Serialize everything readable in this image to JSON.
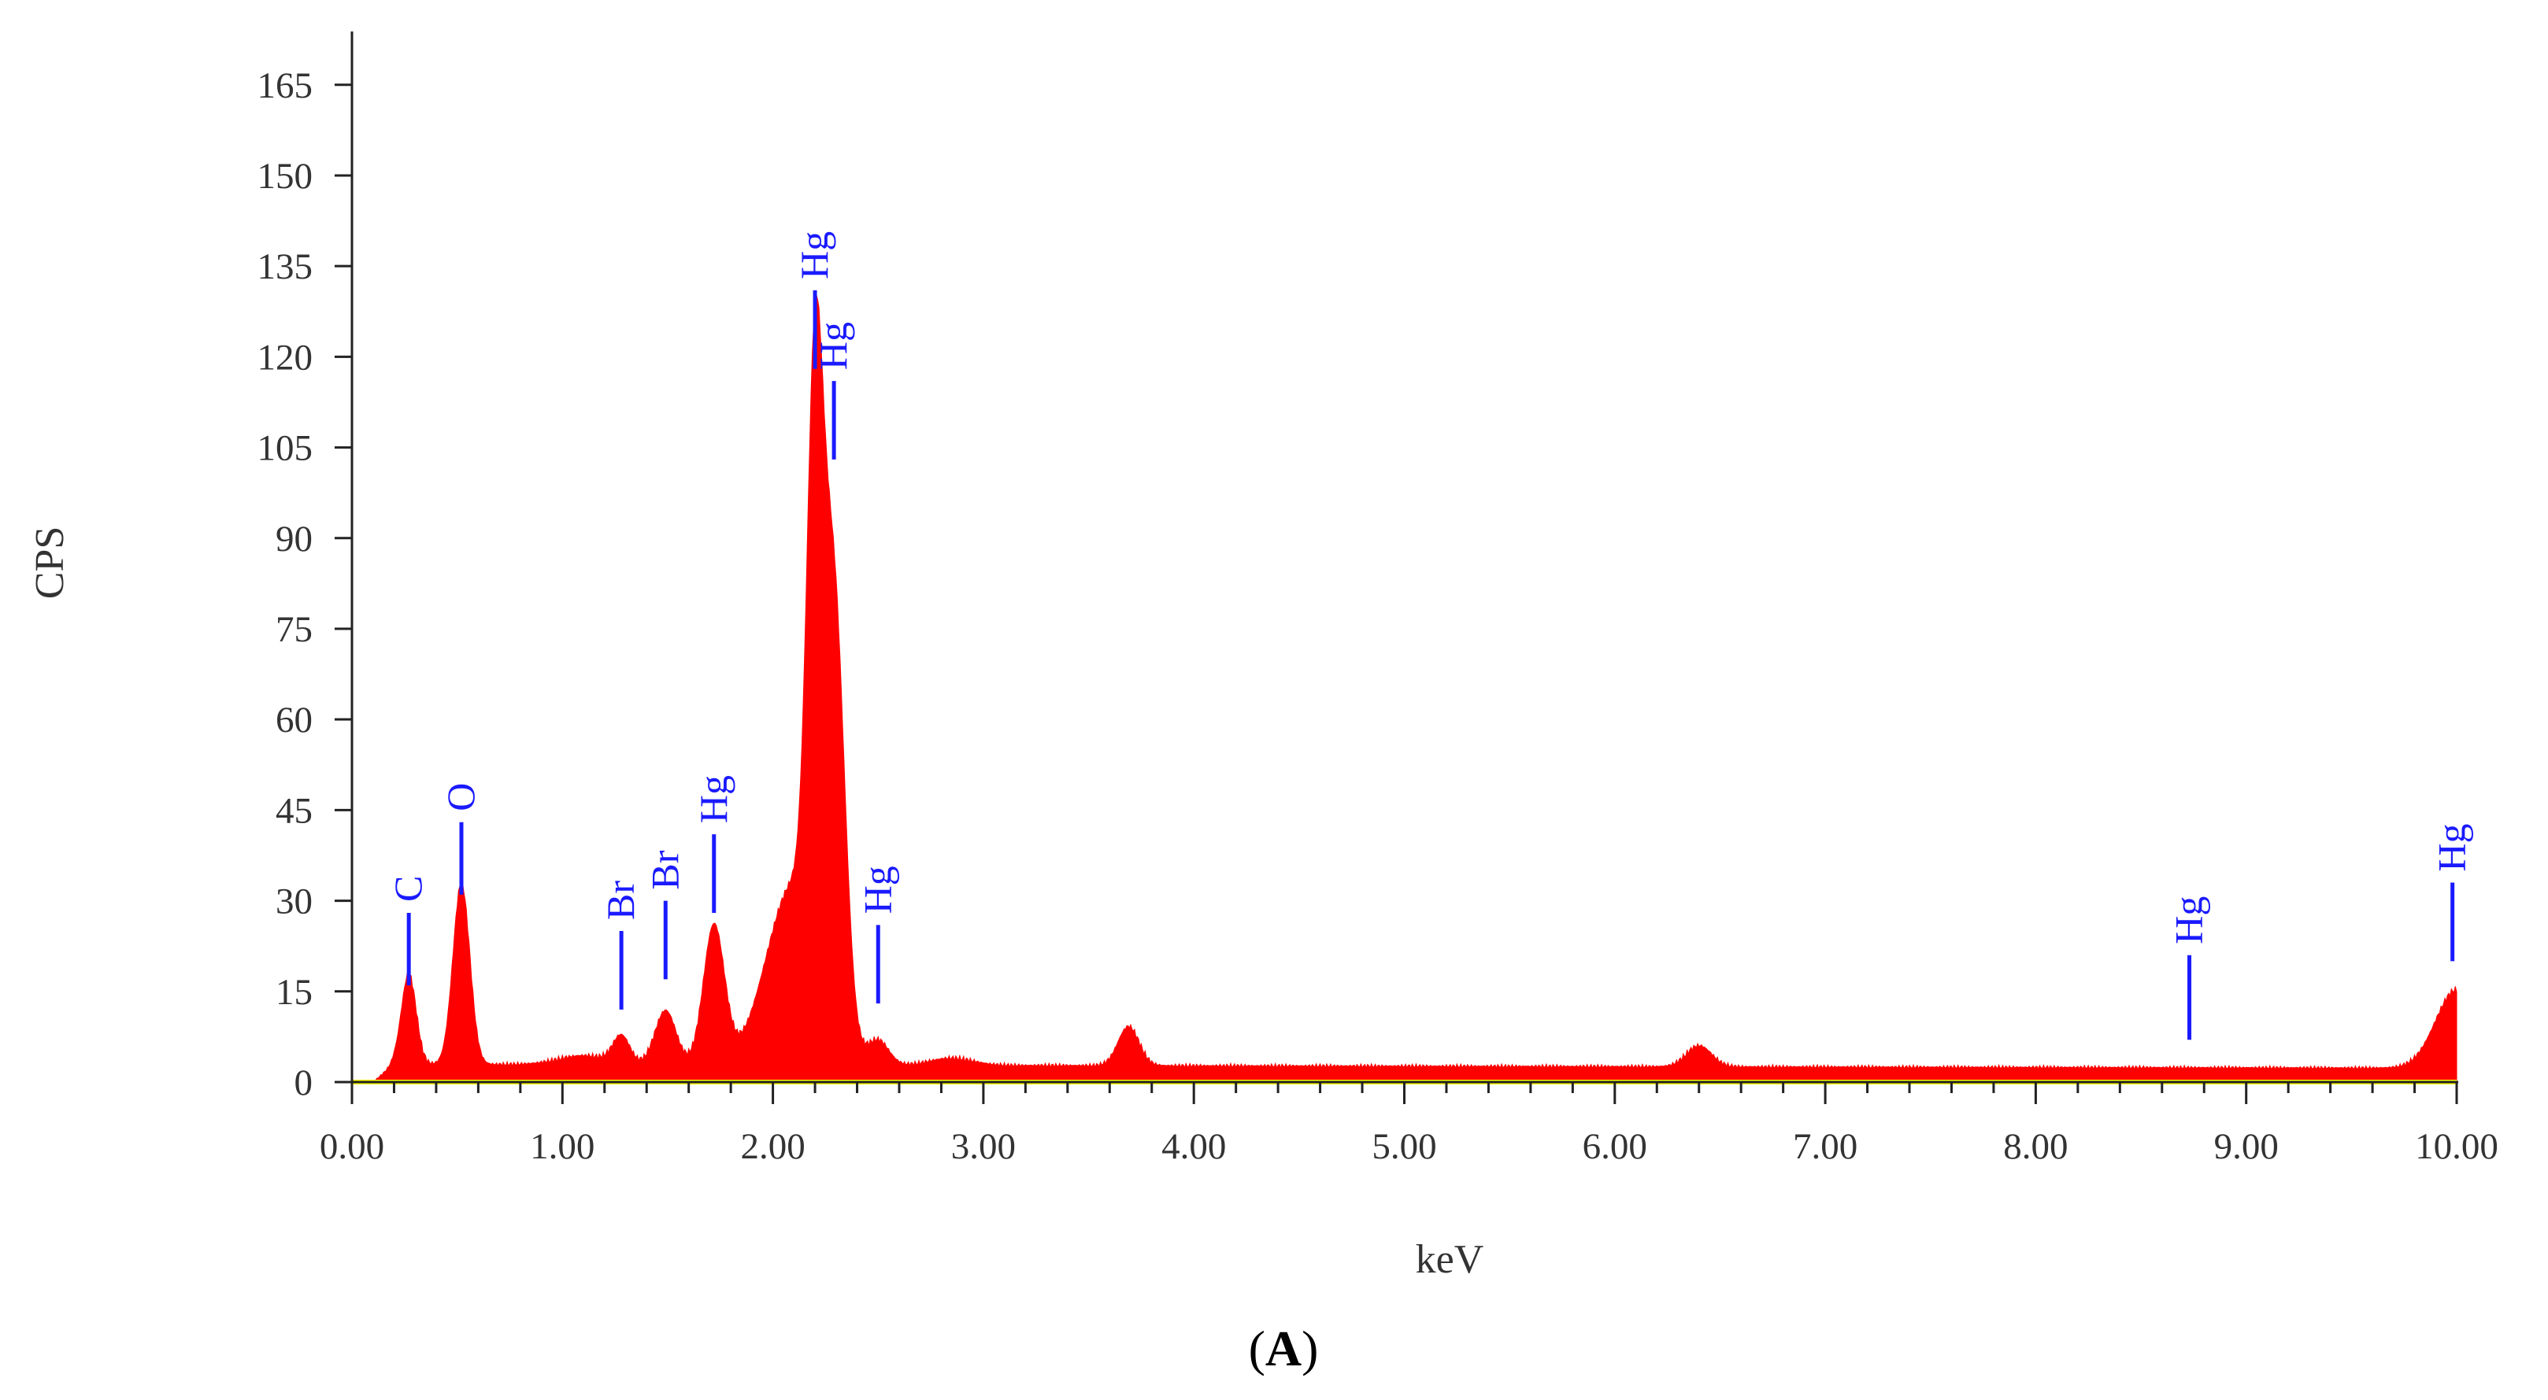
{
  "chart_data": {
    "type": "area",
    "xlabel": "keV",
    "ylabel": "CPS",
    "panel_label": "A",
    "xlim": [
      0,
      10
    ],
    "ylim": [
      0,
      172
    ],
    "xticks": [
      "0.00",
      "1.00",
      "2.00",
      "3.00",
      "4.00",
      "5.00",
      "6.00",
      "7.00",
      "8.00",
      "9.00",
      "10.00"
    ],
    "yticks": [
      "0",
      "15",
      "30",
      "45",
      "60",
      "75",
      "90",
      "105",
      "120",
      "135",
      "150",
      "165"
    ],
    "fill_color": "#ff0000",
    "baseline_color": "#ffff00",
    "marker_color": "#1a1aff",
    "grid": false,
    "legend": "none",
    "background_level": 3,
    "peaks": [
      {
        "x": 0.27,
        "height": 15,
        "width": 0.035
      },
      {
        "x": 0.52,
        "height": 30,
        "width": 0.04
      },
      {
        "x": 1.1,
        "height": 1.5,
        "width": 0.12
      },
      {
        "x": 1.28,
        "height": 4.5,
        "width": 0.04
      },
      {
        "x": 1.49,
        "height": 9,
        "width": 0.05
      },
      {
        "x": 1.72,
        "height": 23,
        "width": 0.05
      },
      {
        "x": 2.1,
        "height": 30,
        "width": 0.13
      },
      {
        "x": 2.2,
        "height": 90,
        "width": 0.038
      },
      {
        "x": 2.29,
        "height": 70,
        "width": 0.05
      },
      {
        "x": 2.5,
        "height": 4,
        "width": 0.05
      },
      {
        "x": 2.85,
        "height": 1.2,
        "width": 0.1
      },
      {
        "x": 3.69,
        "height": 6.5,
        "width": 0.05
      },
      {
        "x": 6.4,
        "height": 3.5,
        "width": 0.06
      },
      {
        "x": 10.0,
        "height": 13,
        "width": 0.1
      }
    ],
    "element_markers": [
      {
        "element": "C",
        "x": 0.27,
        "line_bottom": 16,
        "line_top": 28
      },
      {
        "element": "O",
        "x": 0.52,
        "line_bottom": 31,
        "line_top": 43
      },
      {
        "element": "Br",
        "x": 1.28,
        "line_bottom": 12,
        "line_top": 25
      },
      {
        "element": "Br",
        "x": 1.49,
        "line_bottom": 17,
        "line_top": 30
      },
      {
        "element": "Hg",
        "x": 1.72,
        "line_bottom": 28,
        "line_top": 41
      },
      {
        "element": "Hg",
        "x": 2.2,
        "line_bottom": 118,
        "line_top": 131
      },
      {
        "element": "Hg",
        "x": 2.29,
        "line_bottom": 103,
        "line_top": 116
      },
      {
        "element": "Hg",
        "x": 2.5,
        "line_bottom": 13,
        "line_top": 26
      },
      {
        "element": "Hg",
        "x": 8.73,
        "line_bottom": 7,
        "line_top": 21
      },
      {
        "element": "Hg",
        "x": 9.98,
        "line_bottom": 20,
        "line_top": 33
      }
    ]
  }
}
